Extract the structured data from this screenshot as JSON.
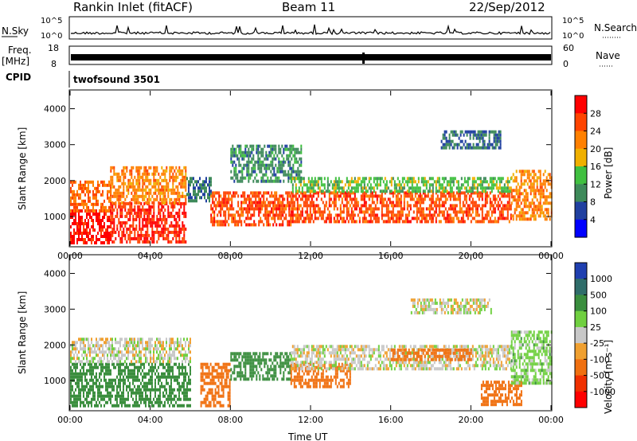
{
  "header": {
    "station": "Rankin Inlet (fitACF)",
    "beam": "Beam 11",
    "date": "22/Sep/2012"
  },
  "info_panels": {
    "nsky_label": "N.Sky",
    "nsky_ticks": [
      "10^5",
      "10^0"
    ],
    "nsearch_label": "N.Search",
    "nsearch_ticks": [
      "10^5",
      "10^0"
    ],
    "freq_label": "Freq.",
    "freq_unit": "[MHz]",
    "freq_ticks": [
      "18",
      "8"
    ],
    "nave_label": "Nave",
    "nave_ticks": [
      "60",
      "0"
    ],
    "cpid_label": "CPID",
    "cpid_value": "twofsound 3501"
  },
  "chart_data": [
    {
      "type": "heatmap",
      "name": "power",
      "ylabel": "Slant Range [km]",
      "xlabel": "",
      "colorbar_label": "Power [dB]",
      "colorbar_ticks": [
        "28",
        "24",
        "20",
        "16",
        "12",
        "8",
        "4"
      ],
      "colorbar_colors": [
        "#ff0000",
        "#ff4400",
        "#ff8000",
        "#f0b000",
        "#40c040",
        "#3e8a5a",
        "#2040a0",
        "#0000ff"
      ],
      "colorbar_range": [
        0,
        32
      ],
      "x_ticks": [
        "00:00",
        "04:00",
        "08:00",
        "12:00",
        "16:00",
        "20:00",
        "00:00"
      ],
      "y_ticks": [
        "1000",
        "2000",
        "3000",
        "4000"
      ],
      "xlim_hours": [
        0,
        24
      ],
      "ylim_km": [
        180,
        4500
      ],
      "scatter_regions": [
        {
          "t0": 0.0,
          "t1": 2.0,
          "r0": 300,
          "r1": 1200,
          "value": 30
        },
        {
          "t0": 0.0,
          "t1": 2.0,
          "r0": 1200,
          "r1": 2000,
          "value": 24
        },
        {
          "t0": 2.0,
          "t1": 5.8,
          "r0": 300,
          "r1": 1400,
          "value": 28
        },
        {
          "t0": 2.0,
          "t1": 5.8,
          "r0": 1400,
          "r1": 2400,
          "value": 22
        },
        {
          "t0": 5.8,
          "t1": 7.0,
          "r0": 1400,
          "r1": 2100,
          "value": 8
        },
        {
          "t0": 7.0,
          "t1": 11.0,
          "r0": 800,
          "r1": 1700,
          "value": 26
        },
        {
          "t0": 8.0,
          "t1": 11.5,
          "r0": 2000,
          "r1": 3000,
          "value": 10
        },
        {
          "t0": 11.0,
          "t1": 22.0,
          "r0": 900,
          "r1": 1700,
          "value": 26
        },
        {
          "t0": 11.0,
          "t1": 22.0,
          "r0": 1700,
          "r1": 2100,
          "value": 14
        },
        {
          "t0": 18.5,
          "t1": 21.5,
          "r0": 2900,
          "r1": 3400,
          "value": 8
        },
        {
          "t0": 22.0,
          "t1": 24.0,
          "r0": 900,
          "r1": 2300,
          "value": 22
        }
      ]
    },
    {
      "type": "heatmap",
      "name": "velocity",
      "ylabel": "Slant Range [km]",
      "xlabel": "Time UT",
      "colorbar_label": "Velocity [m s⁻¹]",
      "colorbar_ticks": [
        "1000",
        "500",
        "100",
        "25",
        "-25",
        "-100",
        "-500",
        "-1000"
      ],
      "colorbar_colors": [
        "#1f3fb0",
        "#2f6d6a",
        "#3a8e3e",
        "#70d040",
        "#c8c8c8",
        "#f0a030",
        "#f07010",
        "#f03000",
        "#ff0000"
      ],
      "x_ticks": [
        "00:00",
        "04:00",
        "08:00",
        "12:00",
        "16:00",
        "20:00",
        "00:00"
      ],
      "y_ticks": [
        "1000",
        "2000",
        "3000",
        "4000"
      ],
      "xlim_hours": [
        0,
        24
      ],
      "ylim_km": [
        180,
        4500
      ],
      "scatter_regions": [
        {
          "t0": 0.0,
          "t1": 6.0,
          "r0": 300,
          "r1": 1500,
          "value": 300
        },
        {
          "t0": 0.0,
          "t1": 6.0,
          "r0": 1500,
          "r1": 2200,
          "value": 0
        },
        {
          "t0": 6.5,
          "t1": 8.0,
          "r0": 300,
          "r1": 1500,
          "value": -200
        },
        {
          "t0": 8.0,
          "t1": 11.0,
          "r0": 1000,
          "r1": 1800,
          "value": 300
        },
        {
          "t0": 11.0,
          "t1": 14.0,
          "r0": 800,
          "r1": 1500,
          "value": -200
        },
        {
          "t0": 11.0,
          "t1": 22.0,
          "r0": 1300,
          "r1": 2000,
          "value": 0
        },
        {
          "t0": 16.0,
          "t1": 20.0,
          "r0": 1600,
          "r1": 1900,
          "value": -200
        },
        {
          "t0": 17.0,
          "t1": 21.0,
          "r0": 2900,
          "r1": 3300,
          "value": 0
        },
        {
          "t0": 20.5,
          "t1": 22.5,
          "r0": 300,
          "r1": 1000,
          "value": -300
        },
        {
          "t0": 22.0,
          "t1": 24.0,
          "r0": 900,
          "r1": 2400,
          "value": 60
        }
      ]
    }
  ]
}
